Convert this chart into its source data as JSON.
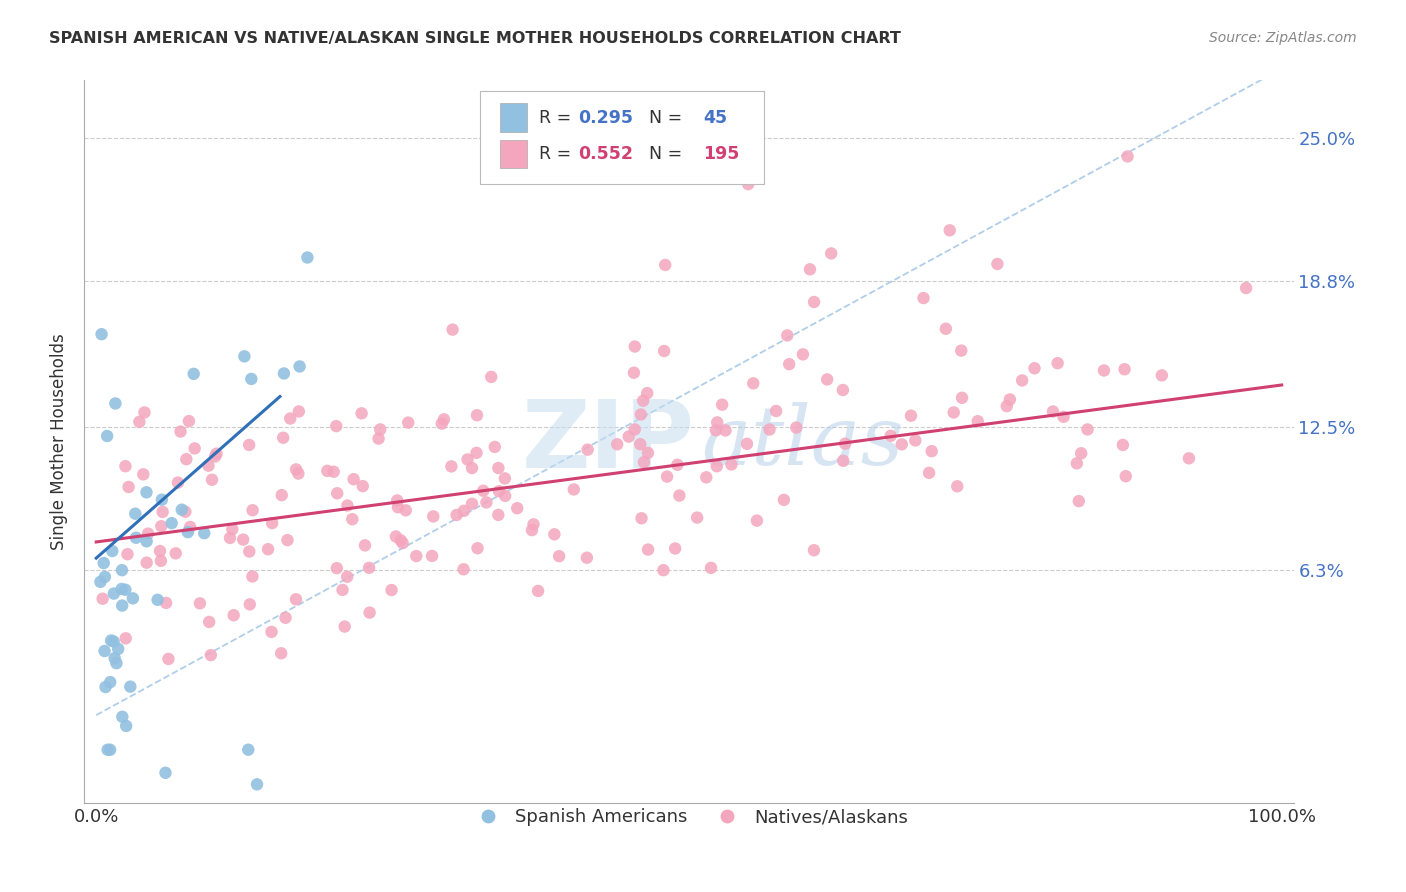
{
  "title": "SPANISH AMERICAN VS NATIVE/ALASKAN SINGLE MOTHER HOUSEHOLDS CORRELATION CHART",
  "source": "Source: ZipAtlas.com",
  "ylabel": "Single Mother Households",
  "ytick_labels": [
    "6.3%",
    "12.5%",
    "18.8%",
    "25.0%"
  ],
  "ytick_values": [
    0.063,
    0.125,
    0.188,
    0.25
  ],
  "legend_label_blue": "Spanish Americans",
  "legend_label_pink": "Natives/Alaskans",
  "blue_color": "#92c0e0",
  "pink_color": "#f4a6be",
  "blue_line_color": "#3070b8",
  "pink_line_color": "#d04070",
  "dashed_line_color": "#a8c8e8",
  "background_color": "#ffffff",
  "xlim": [
    0.0,
    1.0
  ],
  "ylim": [
    -0.038,
    0.275
  ],
  "blue_line_x": [
    0.0,
    0.155
  ],
  "blue_line_y": [
    0.068,
    0.138
  ],
  "pink_line_x": [
    0.0,
    1.0
  ],
  "pink_line_y": [
    0.075,
    0.143
  ],
  "diag_line_x": [
    0.0,
    1.0
  ],
  "diag_line_y": [
    0.0,
    0.28
  ]
}
